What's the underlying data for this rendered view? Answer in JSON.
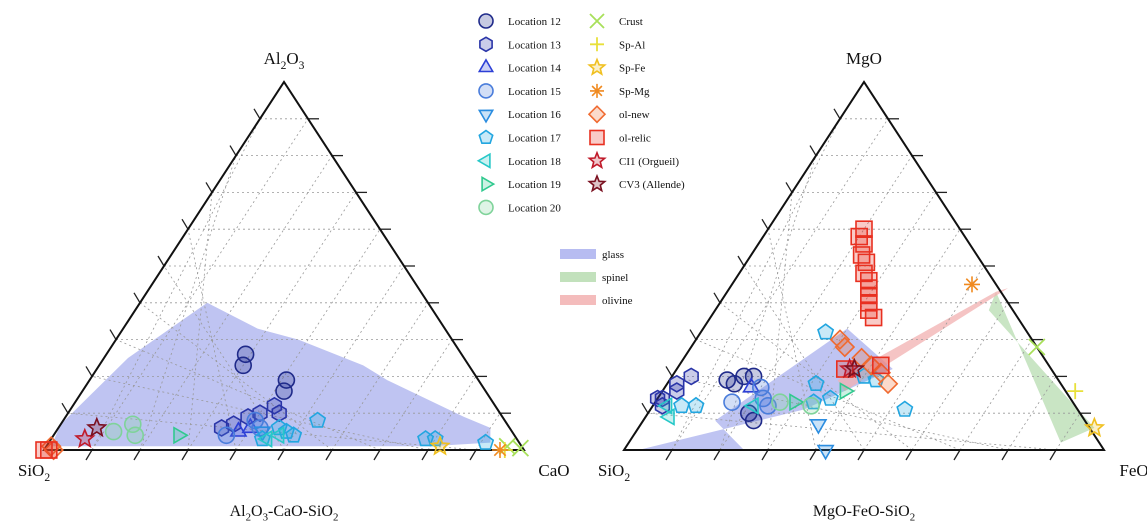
{
  "chart_data": [
    {
      "type": "scatter",
      "subtype": "ternary",
      "title": "Al2O3-CaO-SiO2",
      "title_parts": [
        "Al",
        "2",
        "O",
        "3",
        "-CaO-SiO",
        "2"
      ],
      "vertices": {
        "top": [
          "Al",
          "2",
          "O",
          "3"
        ],
        "left": [
          "SiO",
          "2"
        ],
        "right": [
          "CaO"
        ]
      },
      "grid": true,
      "fields": [
        {
          "name": "glass",
          "color": "#aab0ee",
          "points": [
            [
              0.92,
              0.02
            ],
            [
              0.9,
              0.06
            ],
            [
              0.83,
              0.09
            ],
            [
              0.62,
              0.19
            ],
            [
              0.55,
              0.23
            ],
            [
              0.38,
              0.3
            ],
            [
              0.28,
              0.33
            ],
            [
              0.14,
              0.4
            ],
            [
              0.05,
              0.25
            ],
            [
              0.0,
              0.07
            ],
            [
              0.01,
              0.01
            ],
            [
              0.4,
              0.01
            ],
            [
              0.8,
              0.01
            ]
          ]
        }
      ],
      "series": [
        {
          "name": "Location 12",
          "marker": "circle",
          "color": "#1f2a8a",
          "points": [
            [
              0.42,
              0.16
            ],
            [
              0.41,
              0.19
            ],
            [
              0.3,
              0.23
            ],
            [
              0.29,
              0.26
            ]
          ]
        },
        {
          "name": "Location 13",
          "marker": "hexagon",
          "color": "#2a35a8",
          "points": [
            [
              0.44,
              0.1
            ],
            [
              0.42,
              0.12
            ],
            [
              0.4,
              0.1
            ],
            [
              0.38,
              0.09
            ],
            [
              0.36,
              0.07
            ],
            [
              0.34,
              0.06
            ]
          ]
        },
        {
          "name": "Location 14",
          "marker": "triangle",
          "color": "#2c3fd6",
          "points": [
            [
              0.38,
              0.05
            ],
            [
              0.4,
              0.06
            ]
          ]
        },
        {
          "name": "Location 15",
          "marker": "circle",
          "color": "#4a7ddb",
          "points": [
            [
              0.42,
              0.06
            ],
            [
              0.36,
              0.04
            ],
            [
              0.4,
              0.08
            ]
          ]
        },
        {
          "name": "Location 16",
          "marker": "triangle-down",
          "color": "#2b8de0",
          "points": [
            [
              0.43,
              0.05
            ]
          ]
        },
        {
          "name": "Location 17",
          "marker": "pentagon",
          "color": "#22a6e0",
          "points": [
            [
              0.91,
              0.02
            ],
            [
              0.8,
              0.03
            ],
            [
              0.78,
              0.03
            ],
            [
              0.53,
              0.08
            ],
            [
              0.48,
              0.05
            ],
            [
              0.46,
              0.06
            ],
            [
              0.44,
              0.03
            ],
            [
              0.5,
              0.04
            ]
          ]
        },
        {
          "name": "Location 18",
          "marker": "triangle-left",
          "color": "#27c8c8",
          "points": [
            [
              0.45,
              0.03
            ],
            [
              0.47,
              0.04
            ]
          ]
        },
        {
          "name": "Location 19",
          "marker": "triangle-right",
          "color": "#31c98f",
          "points": [
            [
              0.26,
              0.04
            ]
          ]
        },
        {
          "name": "Location 20",
          "marker": "circle",
          "color": "#7fd39a",
          "points": [
            [
              0.15,
              0.07
            ],
            [
              0.17,
              0.04
            ],
            [
              0.12,
              0.05
            ]
          ]
        },
        {
          "name": "Crust",
          "marker": "x",
          "color": "#a8e05a",
          "points": [
            [
              0.96,
              0.01
            ],
            [
              0.99,
              0.005
            ]
          ]
        },
        {
          "name": "Sp-Al",
          "marker": "plus",
          "color": "#e8e03a",
          "points": [
            [
              0.96,
              0.0
            ]
          ]
        },
        {
          "name": "Sp-Fe",
          "marker": "star",
          "color": "#f0c020",
          "points": [
            [
              0.82,
              0.01
            ]
          ]
        },
        {
          "name": "Sp-Mg",
          "marker": "asterisk",
          "color": "#f08a20",
          "points": [
            [
              0.95,
              0.0
            ]
          ]
        },
        {
          "name": "ol-new",
          "marker": "diamond",
          "color": "#f06a30",
          "points": [
            [
              0.01,
              0.01
            ],
            [
              0.02,
              0.0
            ]
          ]
        },
        {
          "name": "ol-relic",
          "marker": "square",
          "color": "#e83020",
          "points": [
            [
              0.0,
              0.0
            ],
            [
              0.01,
              0.0
            ]
          ]
        },
        {
          "name": "CI1 (Orgueil)",
          "marker": "star",
          "color": "#c01a2a",
          "points": [
            [
              0.07,
              0.03
            ]
          ]
        },
        {
          "name": "CV3 (Allende)",
          "marker": "star",
          "color": "#7a1020",
          "points": [
            [
              0.08,
              0.06
            ]
          ]
        }
      ]
    },
    {
      "type": "scatter",
      "subtype": "ternary",
      "title": "MgO-FeO-SiO2",
      "title_parts": [
        "MgO-FeO-SiO",
        "2"
      ],
      "vertices": {
        "top": [
          "MgO"
        ],
        "left": [
          "SiO",
          "2"
        ],
        "right": [
          "FeO"
        ]
      },
      "grid": true,
      "fields": [
        {
          "name": "glass",
          "color": "#aab0ee",
          "points": [
            [
              0.25,
              0.0
            ],
            [
              0.15,
              0.08
            ],
            [
              0.3,
              0.33
            ],
            [
              0.45,
              0.22
            ],
            [
              0.32,
              0.11
            ],
            [
              0.03,
              0.0
            ]
          ]
        },
        {
          "name": "spinel",
          "color": "#b7dcb0",
          "points": [
            [
              0.56,
              0.43
            ],
            [
              0.57,
              0.38
            ],
            [
              0.95,
              0.06
            ],
            [
              0.9,
              0.02
            ]
          ]
        },
        {
          "name": "olivine",
          "color": "#f2b0b0",
          "points": [
            [
              0.58,
              0.44
            ],
            [
              0.56,
              0.43
            ],
            [
              0.35,
              0.19
            ],
            [
              0.38,
              0.16
            ]
          ]
        }
      ],
      "series": [
        {
          "name": "Location 12",
          "marker": "circle",
          "color": "#1f2a8a",
          "points": [
            [
              0.15,
              0.2
            ],
            [
              0.14,
              0.18
            ],
            [
              0.17,
              0.2
            ],
            [
              0.12,
              0.19
            ],
            [
              0.21,
              0.1
            ],
            [
              0.23,
              0.08
            ]
          ]
        },
        {
          "name": "Location 13",
          "marker": "hexagon",
          "color": "#2a35a8",
          "points": [
            [
              0.04,
              0.2
            ],
            [
              0.02,
              0.18
            ],
            [
              0.01,
              0.14
            ],
            [
              0.03,
              0.16
            ],
            [
              0.02,
              0.12
            ],
            [
              0.0,
              0.14
            ]
          ]
        },
        {
          "name": "Location 14",
          "marker": "triangle",
          "color": "#2c3fd6",
          "points": [
            [
              0.18,
              0.17
            ]
          ]
        },
        {
          "name": "Location 15",
          "marker": "circle",
          "color": "#4a7ddb",
          "points": [
            [
              0.16,
              0.13
            ],
            [
              0.2,
              0.17
            ],
            [
              0.22,
              0.14
            ],
            [
              0.24,
              0.12
            ]
          ]
        },
        {
          "name": "Location 16",
          "marker": "triangle-down",
          "color": "#2b8de0",
          "points": [
            [
              0.37,
              0.07
            ],
            [
              0.42,
              0.0
            ]
          ]
        },
        {
          "name": "Location 17",
          "marker": "pentagon",
          "color": "#22a6e0",
          "points": [
            [
              0.26,
              0.32
            ],
            [
              0.4,
              0.2
            ],
            [
              0.43,
              0.19
            ],
            [
              0.53,
              0.11
            ],
            [
              0.31,
              0.18
            ],
            [
              0.06,
              0.12
            ],
            [
              0.09,
              0.12
            ],
            [
              0.33,
              0.13
            ],
            [
              0.36,
              0.14
            ]
          ]
        },
        {
          "name": "Location 18",
          "marker": "triangle-left",
          "color": "#27c8c8",
          "points": [
            [
              0.03,
              0.12
            ],
            [
              0.05,
              0.09
            ],
            [
              0.21,
              0.12
            ]
          ]
        },
        {
          "name": "Location 19",
          "marker": "triangle-right",
          "color": "#31c98f",
          "points": [
            [
              0.29,
              0.13
            ],
            [
              0.38,
              0.16
            ]
          ]
        },
        {
          "name": "Location 20",
          "marker": "circle",
          "color": "#7fd39a",
          "points": [
            [
              0.26,
              0.13
            ],
            [
              0.33,
              0.12
            ]
          ]
        },
        {
          "name": "Crust",
          "marker": "x",
          "color": "#a8e05a",
          "points": [
            [
              0.72,
              0.28
            ]
          ]
        },
        {
          "name": "Sp-Al",
          "marker": "plus",
          "color": "#e8e03a",
          "points": [
            [
              0.86,
              0.16
            ]
          ]
        },
        {
          "name": "Sp-Fe",
          "marker": "star",
          "color": "#f0c020",
          "points": [
            [
              0.95,
              0.06
            ]
          ]
        },
        {
          "name": "Sp-Mg",
          "marker": "asterisk",
          "color": "#f08a20",
          "points": [
            [
              0.5,
              0.45
            ]
          ]
        },
        {
          "name": "ol-new",
          "marker": "diamond",
          "color": "#f06a30",
          "points": [
            [
              0.3,
              0.3
            ],
            [
              0.32,
              0.28
            ],
            [
              0.37,
              0.25
            ],
            [
              0.4,
              0.23
            ],
            [
              0.43,
              0.21
            ],
            [
              0.46,
              0.18
            ]
          ]
        },
        {
          "name": "ol-relic",
          "marker": "square",
          "color": "#e83020",
          "points": [
            [
              0.2,
              0.6
            ],
            [
              0.2,
              0.58
            ],
            [
              0.22,
              0.56
            ],
            [
              0.23,
              0.53
            ],
            [
              0.25,
              0.51
            ],
            [
              0.26,
              0.48
            ],
            [
              0.28,
              0.46
            ],
            [
              0.29,
              0.44
            ],
            [
              0.3,
              0.42
            ],
            [
              0.31,
              0.4
            ],
            [
              0.32,
              0.38
            ],
            [
              0.34,
              0.36
            ],
            [
              0.35,
              0.22
            ],
            [
              0.42,
              0.23
            ]
          ]
        },
        {
          "name": "CI1 (Orgueil)",
          "marker": "star",
          "color": "#c01a2a",
          "points": [
            [
              0.36,
              0.22
            ]
          ]
        },
        {
          "name": "CV3 (Allende)",
          "marker": "star",
          "color": "#7a1020",
          "points": [
            [
              0.37,
              0.22
            ]
          ]
        }
      ]
    }
  ],
  "legend": {
    "placement": "top-center",
    "markers": [
      {
        "label": "Location 12",
        "marker": "circle",
        "color": "#1f2a8a"
      },
      {
        "label": "Location 13",
        "marker": "hexagon",
        "color": "#2a35a8"
      },
      {
        "label": "Location 14",
        "marker": "triangle",
        "color": "#2c3fd6"
      },
      {
        "label": "Location 15",
        "marker": "circle",
        "color": "#4a7ddb"
      },
      {
        "label": "Location 16",
        "marker": "triangle-down",
        "color": "#2b8de0"
      },
      {
        "label": "Location 17",
        "marker": "pentagon",
        "color": "#22a6e0"
      },
      {
        "label": "Location 18",
        "marker": "triangle-left",
        "color": "#27c8c8"
      },
      {
        "label": "Location 19",
        "marker": "triangle-right",
        "color": "#31c98f"
      },
      {
        "label": "Location 20",
        "marker": "circle",
        "color": "#7fd39a"
      },
      {
        "label": "Crust",
        "marker": "x",
        "color": "#a8e05a"
      },
      {
        "label": "Sp-Al",
        "marker": "plus",
        "color": "#e8e03a"
      },
      {
        "label": "Sp-Fe",
        "marker": "star",
        "color": "#f0c020"
      },
      {
        "label": "Sp-Mg",
        "marker": "asterisk",
        "color": "#f08a20"
      },
      {
        "label": "ol-new",
        "marker": "diamond",
        "color": "#f06a30"
      },
      {
        "label": "ol-relic",
        "marker": "square",
        "color": "#e83020"
      },
      {
        "label": "CI1 (Orgueil)",
        "marker": "star",
        "color": "#c01a2a"
      },
      {
        "label": "CV3 (Allende)",
        "marker": "star",
        "color": "#7a1020"
      }
    ],
    "fields": [
      {
        "label": "glass",
        "color": "#aab0ee"
      },
      {
        "label": "spinel",
        "color": "#b7dcb0"
      },
      {
        "label": "olivine",
        "color": "#f2b0b0"
      }
    ]
  }
}
